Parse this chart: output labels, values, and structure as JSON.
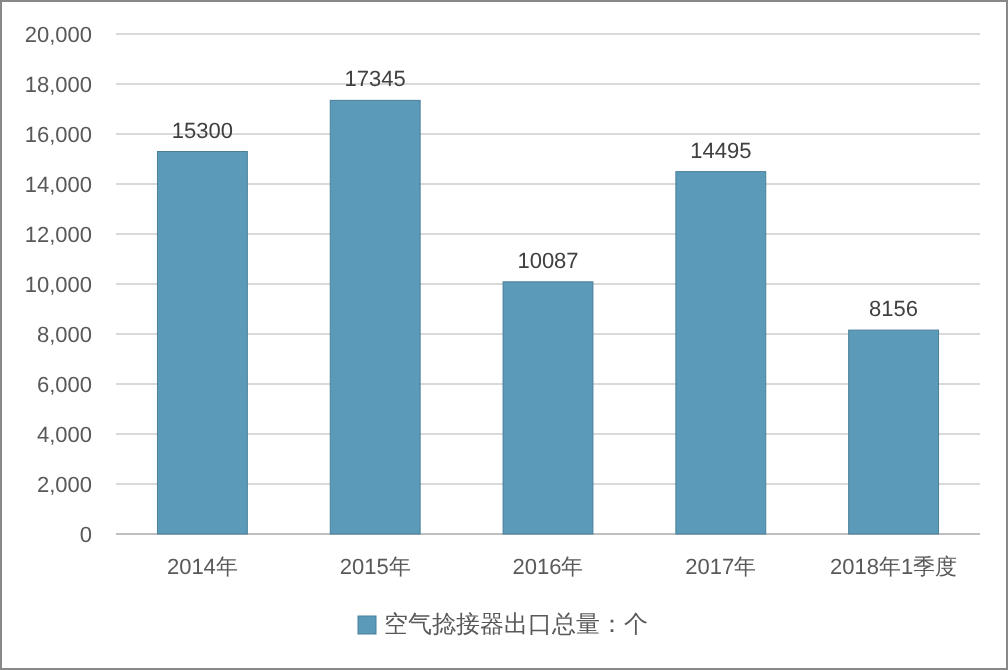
{
  "chart_data": {
    "type": "bar",
    "categories": [
      "2014年",
      "2015年",
      "2016年",
      "2017年",
      "2018年1季度"
    ],
    "series": [
      {
        "name": "空气捻接器出口总量：个",
        "color": "#5b9ab8",
        "values": [
          15300,
          17345,
          10087,
          14495,
          8156
        ]
      }
    ],
    "ylim": [
      0,
      20000
    ],
    "yticks": [
      0,
      {
        "value": 2000,
        "label": "2,000"
      },
      {
        "value": 4000,
        "label": "4,000"
      },
      {
        "value": 6000,
        "label": "6,000"
      },
      {
        "value": 8000,
        "label": "8,000"
      },
      {
        "value": 10000,
        "label": "10,000"
      },
      {
        "value": 12000,
        "label": "12,000"
      },
      {
        "value": 14000,
        "label": "14,000"
      },
      {
        "value": 16000,
        "label": "16,000"
      },
      {
        "value": 18000,
        "label": "18,000"
      },
      {
        "value": 20000,
        "label": "20,000"
      }
    ],
    "grid": "y",
    "data_labels": true,
    "legend": "bottom"
  }
}
